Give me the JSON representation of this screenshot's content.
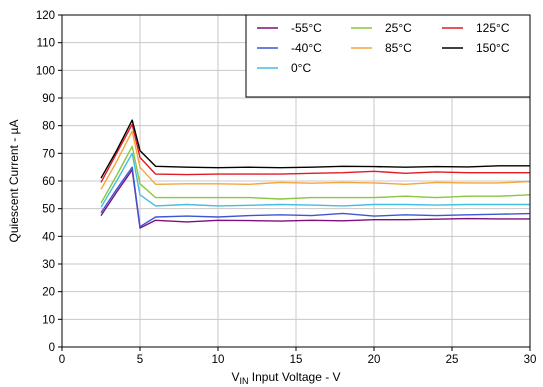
{
  "chart_data": {
    "type": "line",
    "title": "",
    "xlabel_main": "V",
    "xlabel_sub": "IN",
    "xlabel_rest": " Input Voltage - V",
    "ylabel": "Quiescent Current - µA",
    "xlim": [
      0,
      30
    ],
    "ylim": [
      0,
      120
    ],
    "xticks": [
      0,
      5,
      10,
      15,
      20,
      25,
      30
    ],
    "yticks": [
      0,
      10,
      20,
      30,
      40,
      50,
      60,
      70,
      80,
      90,
      100,
      110,
      120
    ],
    "grid": true,
    "legend_position": "top-right",
    "x": [
      2.5,
      3.5,
      4.5,
      5,
      6,
      8,
      10,
      12,
      14,
      16,
      18,
      20,
      22,
      24,
      26,
      28,
      30
    ],
    "series": [
      {
        "name": "-55°C",
        "color": "#7f0f7e",
        "values": [
          47.5,
          56,
          64,
          43,
          45.8,
          45.2,
          45.8,
          45.7,
          45.5,
          45.8,
          45.6,
          46,
          46,
          46.2,
          46.4,
          46.3,
          46.3
        ]
      },
      {
        "name": "-40°C",
        "color": "#3c57d6",
        "values": [
          48.5,
          57,
          65,
          43.5,
          47,
          47.3,
          47,
          47.5,
          47.8,
          47.5,
          48.3,
          47.3,
          47.8,
          47.5,
          47.8,
          48,
          48.2
        ]
      },
      {
        "name": "0°C",
        "color": "#44bde0",
        "values": [
          50.5,
          60,
          70,
          55,
          51,
          51.5,
          51,
          51.2,
          51.5,
          51.3,
          51,
          51.5,
          51.5,
          51.3,
          51.5,
          51.5,
          51.5
        ]
      },
      {
        "name": "25°C",
        "color": "#8cc63e",
        "values": [
          52,
          62,
          72.5,
          59,
          54,
          54,
          54,
          54,
          53.5,
          54,
          54,
          54,
          54.5,
          54,
          54.5,
          54.5,
          55
        ]
      },
      {
        "name": "85°C",
        "color": "#f5a43b",
        "values": [
          57,
          67,
          78,
          65,
          58.8,
          59,
          59,
          58.8,
          59.5,
          59.2,
          59.5,
          59.3,
          58.8,
          59.5,
          59.3,
          59.3,
          59.8
        ]
      },
      {
        "name": "125°C",
        "color": "#e01b24",
        "values": [
          59.5,
          70,
          80.5,
          68.5,
          62.5,
          62.3,
          62.5,
          62.5,
          62.5,
          62.8,
          63,
          63.5,
          62.8,
          63.3,
          63,
          63,
          63
        ]
      },
      {
        "name": "150°C",
        "color": "#000000",
        "values": [
          61,
          71,
          82,
          71,
          65.3,
          65,
          64.8,
          65,
          64.8,
          65,
          65.3,
          65.2,
          65,
          65.2,
          65.1,
          65.5,
          65.5
        ]
      }
    ],
    "legend_rows": [
      [
        "-55°C",
        "25°C",
        "125°C"
      ],
      [
        "-40°C",
        "85°C",
        "150°C"
      ],
      [
        "0°C"
      ]
    ]
  }
}
